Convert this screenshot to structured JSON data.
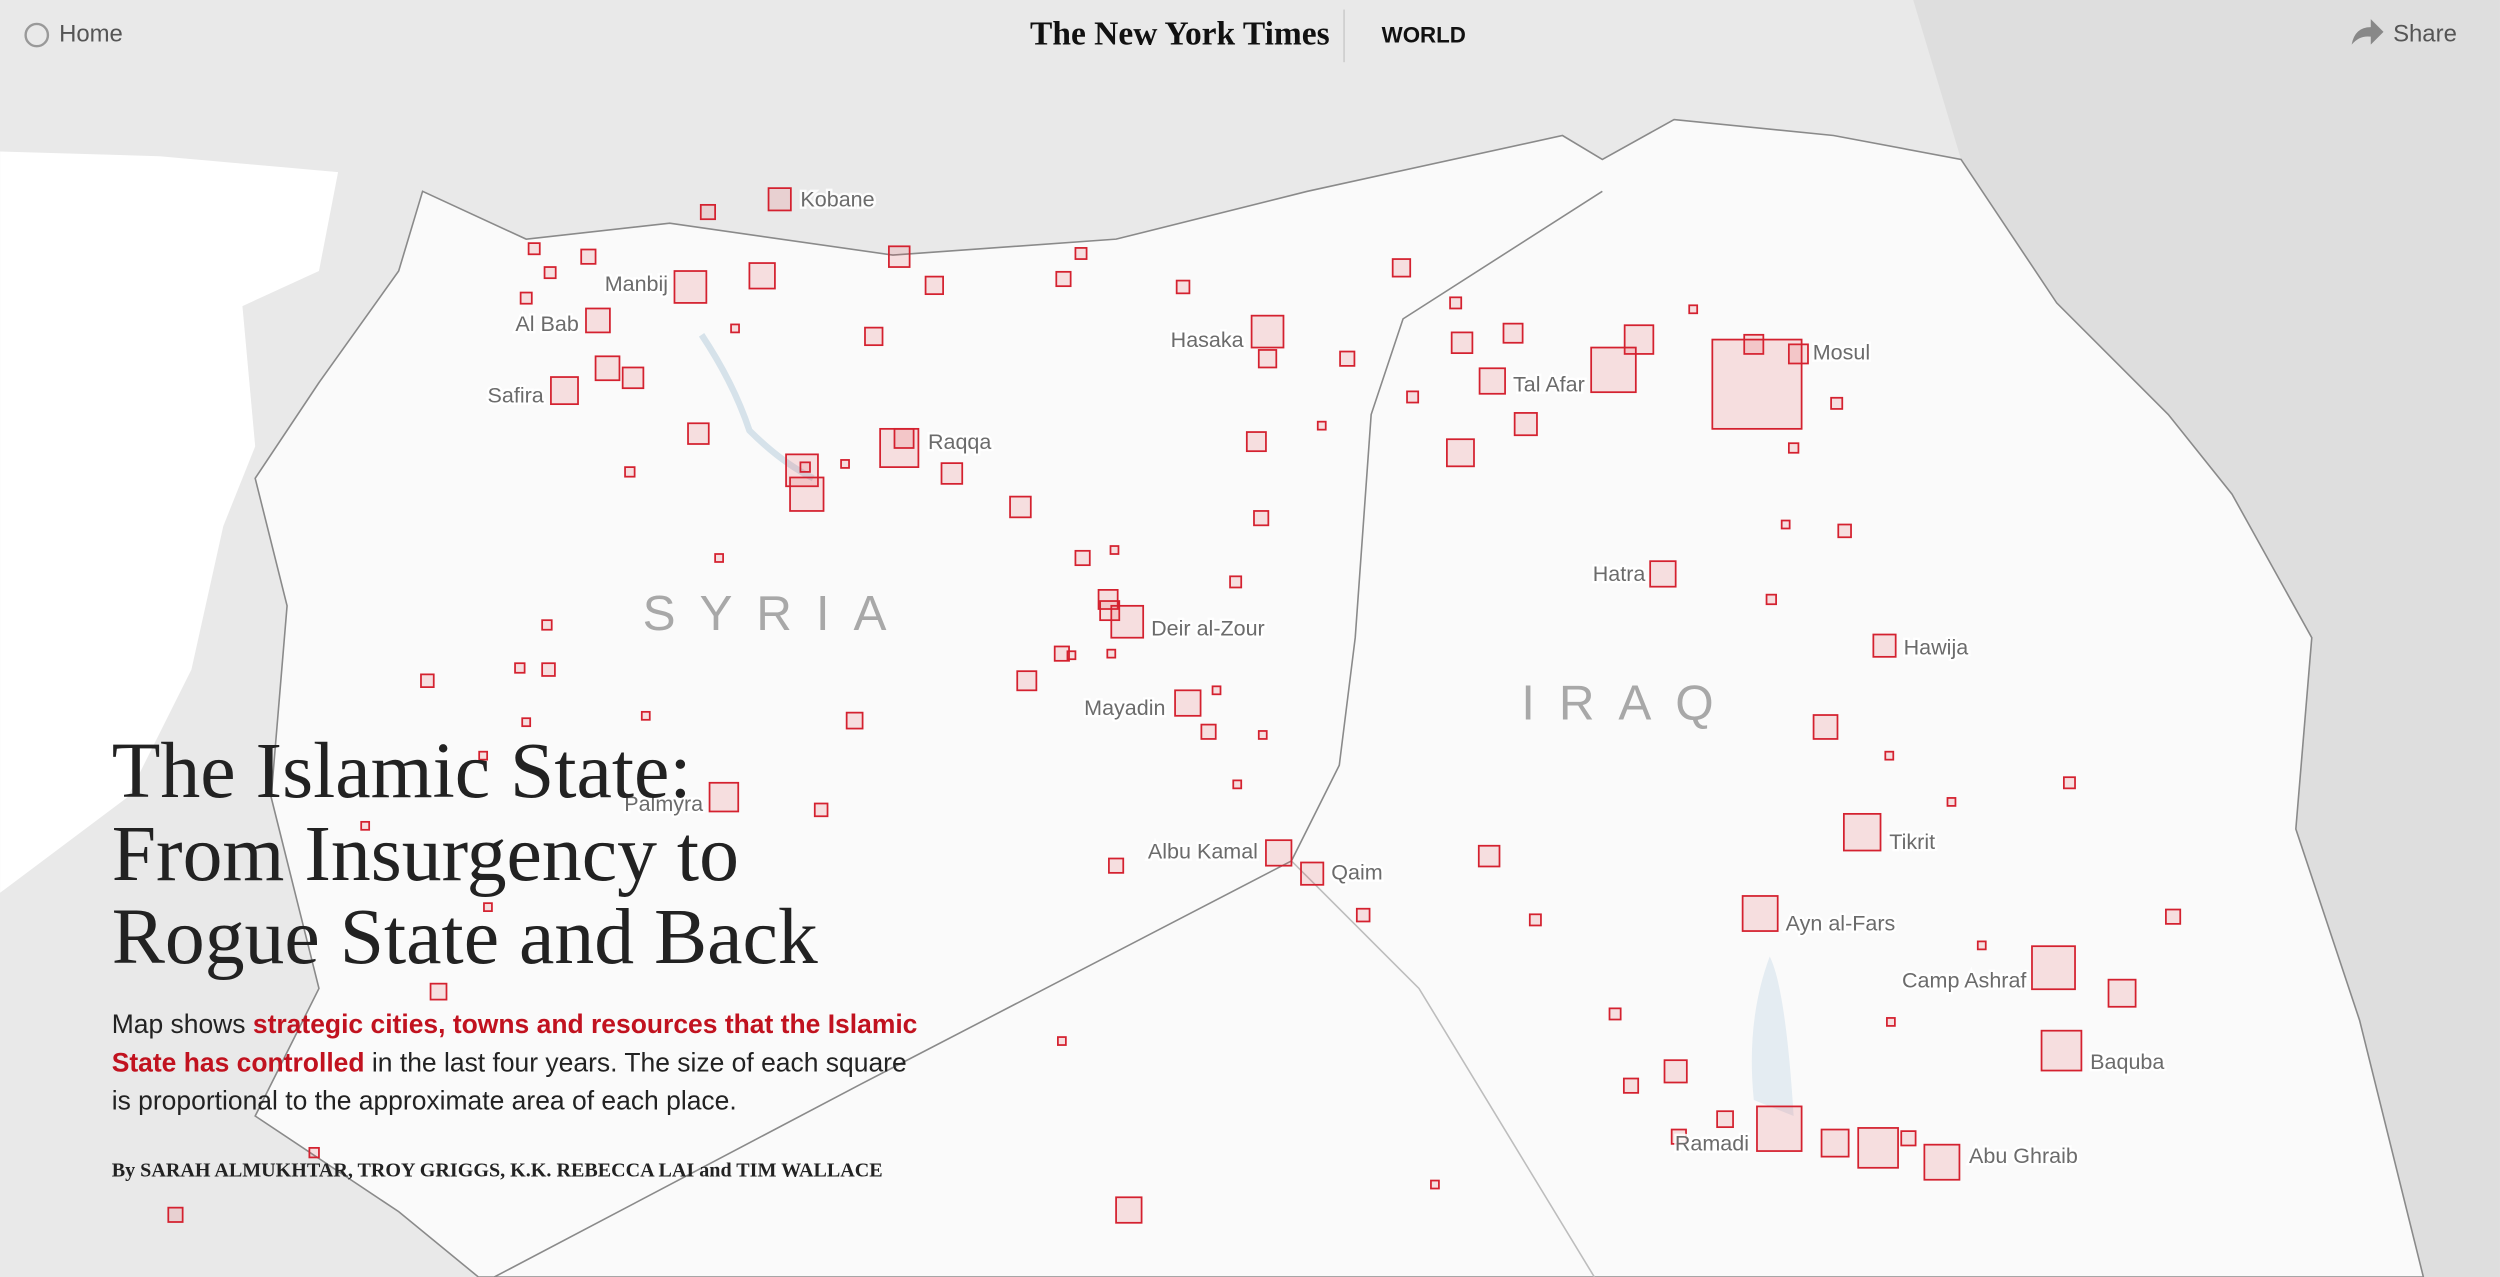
{
  "header": {
    "home": "Home",
    "logo": "The New York Times",
    "section": "WORLD",
    "share": "Share"
  },
  "map": {
    "country_labels": [
      "SYRIA",
      "IRAQ"
    ],
    "city_labels": [
      "Kobane",
      "Manbij",
      "Al Bab",
      "Safira",
      "Raqqa",
      "Hasaka",
      "Tal Afar",
      "Mosul",
      "Hatra",
      "Deir al-Zour",
      "Mayadin",
      "Hawija",
      "Palmyra",
      "Albu Kamal",
      "Qaim",
      "Tikrit",
      "Ayn al-Fars",
      "Camp Ashraf",
      "Baquba",
      "Ramadi",
      "Abu Ghraib"
    ]
  },
  "article": {
    "title_lines": [
      "The Islamic State:",
      "From Insurgency to",
      "Rogue State and Back"
    ],
    "description": [
      "Map shows ",
      "strategic cities, towns and resources that the Islamic State has controlled",
      " in the last four years. The size of each square is proportional to the approximate area of each place."
    ],
    "byline": "By SARAH ALMUKHTAR, TROY GRIGGS, K.K. REBECCA LAI and TIM WALLACE"
  }
}
